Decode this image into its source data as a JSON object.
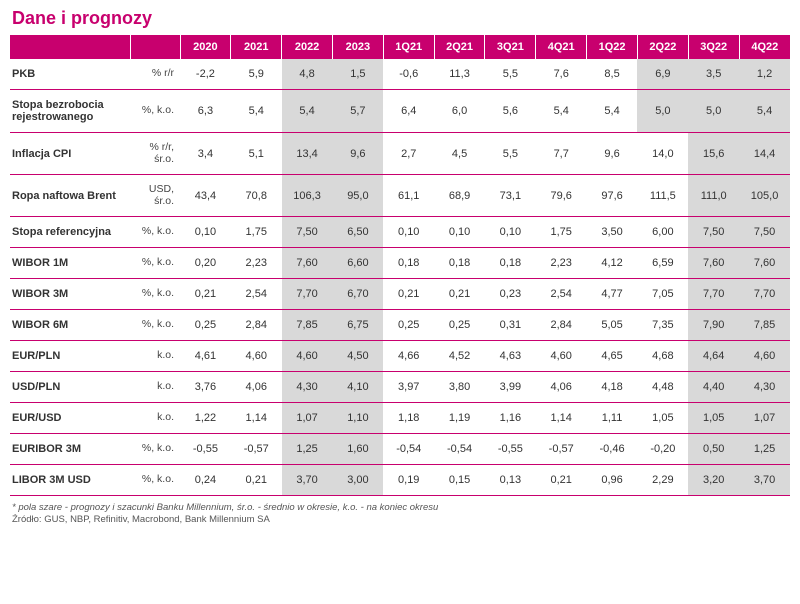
{
  "title": "Dane i prognozy",
  "brand_color": "#c8006e",
  "forecast_bg": "#d9d9d9",
  "columns": [
    "2020",
    "2021",
    "2022",
    "2023",
    "1Q21",
    "2Q21",
    "3Q21",
    "4Q21",
    "1Q22",
    "2Q22",
    "3Q22",
    "4Q22"
  ],
  "annual_forecast_cols": [
    "2022",
    "2023"
  ],
  "rows": [
    {
      "label": "PKB",
      "unit": "% r/r",
      "vals": [
        "-2,2",
        "5,9",
        "4,8",
        "1,5",
        "-0,6",
        "11,3",
        "5,5",
        "7,6",
        "8,5",
        "6,9",
        "3,5",
        "1,2"
      ],
      "q_forecast_from": 9
    },
    {
      "label": "Stopa bezrobocia rejestrowanego",
      "unit": "%, k.o.",
      "vals": [
        "6,3",
        "5,4",
        "5,4",
        "5,7",
        "6,4",
        "6,0",
        "5,6",
        "5,4",
        "5,4",
        "5,0",
        "5,0",
        "5,4"
      ],
      "q_forecast_from": 9
    },
    {
      "label": "Inflacja CPI",
      "unit": "% r/r, śr.o.",
      "vals": [
        "3,4",
        "5,1",
        "13,4",
        "9,6",
        "2,7",
        "4,5",
        "5,5",
        "7,7",
        "9,6",
        "14,0",
        "15,6",
        "14,4"
      ],
      "q_forecast_from": 10
    },
    {
      "label": "Ropa naftowa Brent",
      "unit": "USD, śr.o.",
      "vals": [
        "43,4",
        "70,8",
        "106,3",
        "95,0",
        "61,1",
        "68,9",
        "73,1",
        "79,6",
        "97,6",
        "111,5",
        "111,0",
        "105,0"
      ],
      "q_forecast_from": 10
    },
    {
      "label": "Stopa referencyjna",
      "unit": "%, k.o.",
      "vals": [
        "0,10",
        "1,75",
        "7,50",
        "6,50",
        "0,10",
        "0,10",
        "0,10",
        "1,75",
        "3,50",
        "6,00",
        "7,50",
        "7,50"
      ],
      "q_forecast_from": 10
    },
    {
      "label": "WIBOR 1M",
      "unit": "%, k.o.",
      "vals": [
        "0,20",
        "2,23",
        "7,60",
        "6,60",
        "0,18",
        "0,18",
        "0,18",
        "2,23",
        "4,12",
        "6,59",
        "7,60",
        "7,60"
      ],
      "q_forecast_from": 10
    },
    {
      "label": "WIBOR 3M",
      "unit": "%, k.o.",
      "vals": [
        "0,21",
        "2,54",
        "7,70",
        "6,70",
        "0,21",
        "0,21",
        "0,23",
        "2,54",
        "4,77",
        "7,05",
        "7,70",
        "7,70"
      ],
      "q_forecast_from": 10
    },
    {
      "label": "WIBOR 6M",
      "unit": "%, k.o.",
      "vals": [
        "0,25",
        "2,84",
        "7,85",
        "6,75",
        "0,25",
        "0,25",
        "0,31",
        "2,84",
        "5,05",
        "7,35",
        "7,90",
        "7,85"
      ],
      "q_forecast_from": 10
    },
    {
      "label": "EUR/PLN",
      "unit": "k.o.",
      "vals": [
        "4,61",
        "4,60",
        "4,60",
        "4,50",
        "4,66",
        "4,52",
        "4,63",
        "4,60",
        "4,65",
        "4,68",
        "4,64",
        "4,60"
      ],
      "q_forecast_from": 10
    },
    {
      "label": "USD/PLN",
      "unit": "k.o.",
      "vals": [
        "3,76",
        "4,06",
        "4,30",
        "4,10",
        "3,97",
        "3,80",
        "3,99",
        "4,06",
        "4,18",
        "4,48",
        "4,40",
        "4,30"
      ],
      "q_forecast_from": 10
    },
    {
      "label": "EUR/USD",
      "unit": "k.o.",
      "vals": [
        "1,22",
        "1,14",
        "1,07",
        "1,10",
        "1,18",
        "1,19",
        "1,16",
        "1,14",
        "1,11",
        "1,05",
        "1,05",
        "1,07"
      ],
      "q_forecast_from": 10
    },
    {
      "label": "EURIBOR 3M",
      "unit": "%, k.o.",
      "vals": [
        "-0,55",
        "-0,57",
        "1,25",
        "1,60",
        "-0,54",
        "-0,54",
        "-0,55",
        "-0,57",
        "-0,46",
        "-0,20",
        "0,50",
        "1,25"
      ],
      "q_forecast_from": 10
    },
    {
      "label": "LIBOR 3M USD",
      "unit": "%, k.o.",
      "vals": [
        "0,24",
        "0,21",
        "3,70",
        "3,00",
        "0,19",
        "0,15",
        "0,13",
        "0,21",
        "0,96",
        "2,29",
        "3,20",
        "3,70"
      ],
      "q_forecast_from": 10
    }
  ],
  "footnote_italic": "* pola szare - prognozy i szacunki Banku Millennium, śr.o. - średnio w okresie, k.o. - na koniec okresu",
  "footnote_plain": "Źródło: GUS, NBP, Refinitiv, Macrobond, Bank Millennium SA"
}
